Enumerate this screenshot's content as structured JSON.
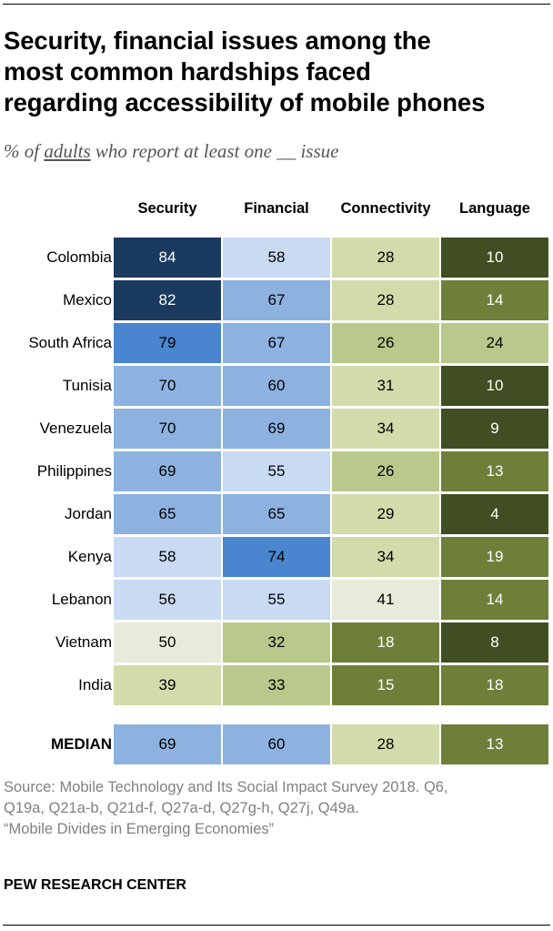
{
  "title_lines": [
    "Security, financial issues among the",
    "most common hardships faced",
    "regarding accessibility of mobile phones"
  ],
  "subtitle": {
    "prefix": "% of ",
    "underlined": "adults",
    "suffix": " who report at least one __ issue"
  },
  "chart_data": {
    "type": "table",
    "title": "Security, financial issues among the most common hardships faced regarding accessibility of mobile phones",
    "subtitle": "% of adults who report at least one __ issue",
    "columns": [
      "Security",
      "Financial",
      "Connectivity",
      "Language"
    ],
    "rows": [
      {
        "label": "Colombia",
        "values": [
          84,
          58,
          28,
          10
        ]
      },
      {
        "label": "Mexico",
        "values": [
          82,
          67,
          28,
          14
        ]
      },
      {
        "label": "South Africa",
        "values": [
          79,
          67,
          26,
          24
        ]
      },
      {
        "label": "Tunisia",
        "values": [
          70,
          60,
          31,
          10
        ]
      },
      {
        "label": "Venezuela",
        "values": [
          70,
          69,
          34,
          9
        ]
      },
      {
        "label": "Philippines",
        "values": [
          69,
          55,
          26,
          13
        ]
      },
      {
        "label": "Jordan",
        "values": [
          65,
          65,
          29,
          4
        ]
      },
      {
        "label": "Kenya",
        "values": [
          58,
          74,
          34,
          19
        ]
      },
      {
        "label": "Lebanon",
        "values": [
          56,
          55,
          41,
          14
        ]
      },
      {
        "label": "Vietnam",
        "values": [
          50,
          32,
          18,
          8
        ]
      },
      {
        "label": "India",
        "values": [
          39,
          33,
          15,
          18
        ]
      }
    ],
    "median": {
      "label": "MEDIAN",
      "values": [
        69,
        60,
        28,
        13
      ]
    },
    "colors": {
      "blue_darkest": "#1b3a60",
      "blue_dark": "#4a85cf",
      "blue_mid": "#8eb2e0",
      "blue_light": "#c9daf3",
      "neutral_light": "#e8eada",
      "green_light": "#d3dbab",
      "green_mid": "#b9c98b",
      "green_dark": "#6e7f39",
      "green_darkest": "#414d22"
    }
  },
  "footer": {
    "source_lines": [
      "Source: Mobile Technology and Its Social Impact Survey 2018. Q6,",
      "Q19a, Q21a-b, Q21d-f, Q27a-d, Q27g-h, Q27j, Q49a.",
      "“Mobile Divides in Emerging Economies”"
    ],
    "brand": "PEW RESEARCH CENTER"
  }
}
